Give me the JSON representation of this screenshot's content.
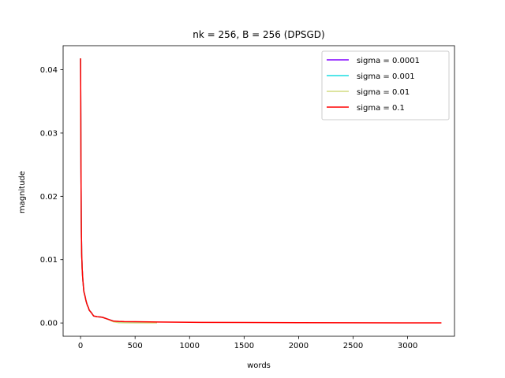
{
  "chart_data": {
    "type": "line",
    "title": "nk = 256, B = 256 (DPSGD)",
    "xlabel": "words",
    "ylabel": "magnitude",
    "xlim": [
      -160,
      3430
    ],
    "ylim": [
      -0.0021,
      0.0438
    ],
    "xticks": [
      0,
      500,
      1000,
      1500,
      2000,
      2500,
      3000
    ],
    "xtick_labels": [
      "0",
      "500",
      "1000",
      "1500",
      "2000",
      "2500",
      "3000"
    ],
    "yticks": [
      0.0,
      0.01,
      0.02,
      0.03,
      0.04
    ],
    "ytick_labels": [
      "0.00",
      "0.01",
      "0.02",
      "0.03",
      "0.04"
    ],
    "grid": false,
    "legend_position": "top-right",
    "series": [
      {
        "name": "sigma = 0.0001",
        "color": "#8000ff",
        "x": [
          0,
          2,
          4,
          6,
          8,
          10,
          15,
          20,
          25,
          30,
          40,
          50,
          60,
          70,
          80,
          100,
          120,
          150,
          200,
          250,
          300,
          350,
          400,
          500,
          600,
          700
        ],
        "y": [
          0.0418,
          0.033,
          0.024,
          0.017,
          0.0135,
          0.011,
          0.0085,
          0.007,
          0.006,
          0.005,
          0.0043,
          0.0035,
          0.0029,
          0.0025,
          0.002,
          0.0016,
          0.0011,
          0.001,
          0.0009,
          0.0006,
          0.0003,
          0.00015,
          0.00012,
          8e-05,
          6e-05,
          5e-05
        ]
      },
      {
        "name": "sigma = 0.001",
        "color": "#1adee2",
        "x": [
          0,
          2,
          4,
          6,
          8,
          10,
          15,
          20,
          25,
          30,
          40,
          50,
          60,
          70,
          80,
          100,
          120,
          150,
          200,
          250,
          300,
          350,
          400,
          500,
          600,
          700
        ],
        "y": [
          0.0418,
          0.033,
          0.024,
          0.017,
          0.0135,
          0.011,
          0.0085,
          0.007,
          0.006,
          0.005,
          0.0043,
          0.0035,
          0.0029,
          0.0025,
          0.002,
          0.0016,
          0.0011,
          0.001,
          0.0009,
          0.0006,
          0.0003,
          0.00015,
          0.00012,
          8e-05,
          6e-05,
          5e-05
        ]
      },
      {
        "name": "sigma = 0.01",
        "color": "#d2db80",
        "x": [
          0,
          2,
          4,
          6,
          8,
          10,
          15,
          20,
          25,
          30,
          40,
          50,
          60,
          70,
          80,
          100,
          120,
          150,
          200,
          250,
          300,
          350,
          400,
          500,
          600,
          700
        ],
        "y": [
          0.0418,
          0.033,
          0.024,
          0.017,
          0.0135,
          0.011,
          0.0085,
          0.007,
          0.006,
          0.005,
          0.0043,
          0.0035,
          0.0029,
          0.0025,
          0.002,
          0.0016,
          0.0011,
          0.001,
          0.0009,
          0.0006,
          0.0002,
          5e-05,
          3e-05,
          2e-05,
          2e-05,
          2e-05
        ]
      },
      {
        "name": "sigma = 0.1",
        "color": "#ff0000",
        "x": [
          0,
          2,
          4,
          6,
          8,
          10,
          15,
          20,
          25,
          30,
          40,
          50,
          60,
          70,
          80,
          100,
          120,
          150,
          200,
          250,
          300,
          350,
          400,
          500,
          700,
          1000,
          1500,
          2000,
          2500,
          3000,
          3310
        ],
        "y": [
          0.0418,
          0.033,
          0.024,
          0.017,
          0.0135,
          0.011,
          0.0085,
          0.007,
          0.006,
          0.005,
          0.0043,
          0.0035,
          0.0029,
          0.0025,
          0.002,
          0.0016,
          0.0011,
          0.001,
          0.0009,
          0.0006,
          0.0003,
          0.00025,
          0.00022,
          0.0002,
          0.00016,
          0.0001,
          7e-05,
          5e-05,
          3e-05,
          2e-05,
          1e-05
        ]
      }
    ]
  }
}
